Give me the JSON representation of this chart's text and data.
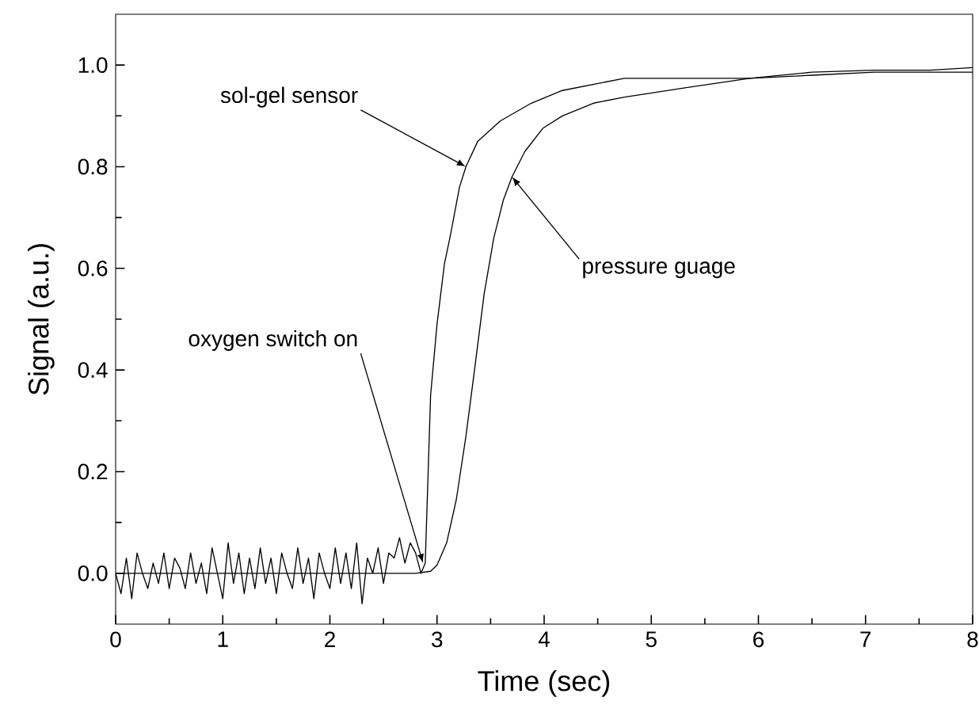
{
  "chart_data": {
    "type": "line",
    "xlabel": "Time (sec)",
    "ylabel": "Signal (a.u.)",
    "xlim": [
      0,
      8
    ],
    "ylim": [
      -0.1,
      1.1
    ],
    "xticks": [
      0,
      1,
      2,
      3,
      4,
      5,
      6,
      7,
      8
    ],
    "yticks": [
      {
        "value": 0,
        "label": "0.0"
      },
      {
        "value": 0.2,
        "label": "0.2"
      },
      {
        "value": 0.4,
        "label": "0.4"
      },
      {
        "value": 0.6,
        "label": "0.6"
      },
      {
        "value": 0.8,
        "label": "0.8"
      },
      {
        "value": 1.0,
        "label": "1.0"
      }
    ],
    "grid": false,
    "marker": "none",
    "line_style": "solid",
    "series": [
      {
        "color": "#000000",
        "x": [
          0,
          0.05,
          0.1,
          0.15,
          0.2,
          0.25,
          0.3,
          0.35,
          0.4,
          0.45,
          0.5,
          0.55,
          0.6,
          0.65,
          0.7,
          0.75,
          0.8,
          0.85,
          0.9,
          0.95,
          1.0,
          1.05,
          1.1,
          1.15,
          1.2,
          1.25,
          1.3,
          1.35,
          1.4,
          1.45,
          1.5,
          1.55,
          1.6,
          1.65,
          1.7,
          1.75,
          1.8,
          1.85,
          1.9,
          1.95,
          2.0,
          2.05,
          2.1,
          2.15,
          2.2,
          2.25,
          2.3,
          2.35,
          2.4,
          2.45,
          2.5,
          2.55,
          2.6,
          2.65,
          2.7,
          2.75,
          2.8,
          2.85,
          2.89,
          2.94,
          3.0,
          3.07,
          3.12,
          3.21,
          3.27,
          3.38,
          3.59,
          3.88,
          4.17,
          4.75,
          5.34,
          5.92,
          6.5,
          7.08,
          7.6,
          8.0
        ],
        "values": [
          0.0,
          -0.04,
          0.03,
          -0.05,
          0.04,
          0.0,
          -0.03,
          0.02,
          -0.02,
          0.04,
          -0.03,
          0.03,
          0.01,
          -0.03,
          0.04,
          -0.02,
          0.02,
          -0.04,
          0.05,
          0.0,
          -0.05,
          0.06,
          -0.02,
          0.04,
          -0.04,
          0.03,
          -0.03,
          0.05,
          -0.02,
          0.03,
          -0.04,
          0.04,
          0.0,
          -0.03,
          0.05,
          -0.02,
          0.03,
          -0.05,
          0.04,
          0.0,
          -0.03,
          0.05,
          -0.02,
          0.04,
          -0.03,
          0.06,
          -0.06,
          0.03,
          0.0,
          0.05,
          -0.02,
          0.04,
          0.03,
          0.07,
          0.02,
          0.06,
          0.04,
          0.0,
          0.02,
          0.35,
          0.49,
          0.61,
          0.66,
          0.76,
          0.8,
          0.85,
          0.89,
          0.925,
          0.95,
          0.974,
          0.974,
          0.974,
          0.986,
          0.99,
          0.99,
          0.995
        ]
      },
      {
        "color": "#000000",
        "x": [
          0,
          2.8,
          2.94,
          3.0,
          3.09,
          3.18,
          3.27,
          3.35,
          3.44,
          3.53,
          3.62,
          3.7,
          3.82,
          3.99,
          4.17,
          4.46,
          4.75,
          5.34,
          5.92,
          6.5,
          7.08,
          8.0
        ],
        "values": [
          0.0,
          0.0,
          0.004,
          0.016,
          0.06,
          0.145,
          0.27,
          0.4,
          0.55,
          0.66,
          0.735,
          0.78,
          0.83,
          0.876,
          0.9,
          0.925,
          0.937,
          0.956,
          0.974,
          0.98,
          0.986,
          0.986
        ]
      }
    ],
    "annotations": [
      {
        "text": "sol-gel sensor",
        "x": 3.27,
        "y": 0.8
      },
      {
        "text": "pressure guage",
        "x": 3.7,
        "y": 0.78
      },
      {
        "text": "oxygen switch on",
        "x": 2.87,
        "y": 0.02
      }
    ]
  }
}
